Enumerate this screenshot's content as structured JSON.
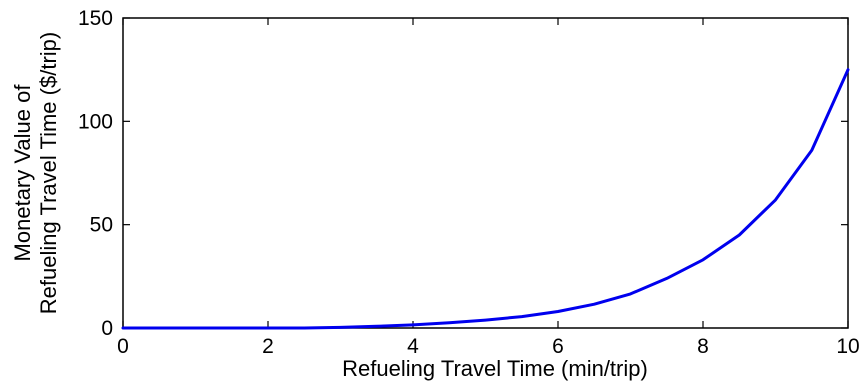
{
  "chart_data": {
    "type": "line",
    "title": "",
    "xlabel": "Refueling Travel Time (min/trip)",
    "ylabel_lines": [
      "Monetary Value of",
      "Refueling Travel Time ($/trip)"
    ],
    "xlim": [
      0,
      10
    ],
    "ylim": [
      0,
      150
    ],
    "xticks": [
      0,
      2,
      4,
      6,
      8,
      10
    ],
    "yticks": [
      0,
      50,
      100,
      150
    ],
    "grid": false,
    "legend": "none",
    "line_color": "#0000ee",
    "series": [
      {
        "x": [
          0,
          0.5,
          1,
          1.5,
          2,
          2.5,
          3,
          3.5,
          4,
          4.5,
          5,
          5.5,
          6,
          6.5,
          7,
          7.5,
          8,
          8.5,
          9,
          9.5,
          10
        ],
        "values": [
          0,
          0,
          0,
          0,
          0,
          0,
          0.3,
          0.8,
          1.5,
          2.5,
          3.8,
          5.5,
          8,
          11.5,
          16.5,
          24,
          33,
          45,
          62,
          86,
          125
        ]
      }
    ]
  }
}
